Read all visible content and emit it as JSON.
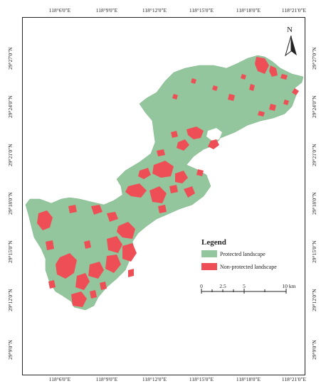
{
  "colors": {
    "protected": "#93c69c",
    "non_protected": "#ee4f56",
    "frame": "#222222",
    "background": "#ffffff"
  },
  "axis_labels": {
    "top": [
      "118°6'0\"E",
      "118°9'0\"E",
      "118°12'0\"E",
      "118°15'0\"E",
      "118°18'0\"E",
      "118°21'0\"E"
    ],
    "bottom": [
      "118°6'0\"E",
      "118°9'0\"E",
      "118°12'0\"E",
      "118°15'0\"E",
      "118°18'0\"E",
      "118°21'0\"E"
    ],
    "left": [
      "29°27'0\"N",
      "29°24'0\"N",
      "29°21'0\"N",
      "29°18'0\"N",
      "29°15'0\"N",
      "29°12'0\"N",
      "29°9'0\"N"
    ],
    "right": [
      "29°27'0\"N",
      "29°24'0\"N",
      "29°21'0\"N",
      "29°18'0\"N",
      "29°15'0\"N",
      "29°12'0\"N",
      "29°9'0\"N"
    ]
  },
  "north_arrow": {
    "label": "N",
    "icon": "north-arrow-icon"
  },
  "legend": {
    "title": "Legend",
    "items": [
      {
        "label": "Protected landscape",
        "color": "#93c69c"
      },
      {
        "label": "Non-protected landscape",
        "color": "#ee4f56"
      }
    ]
  },
  "scale_bar": {
    "labels": [
      "0",
      "2.5",
      "5",
      "10 km"
    ]
  }
}
